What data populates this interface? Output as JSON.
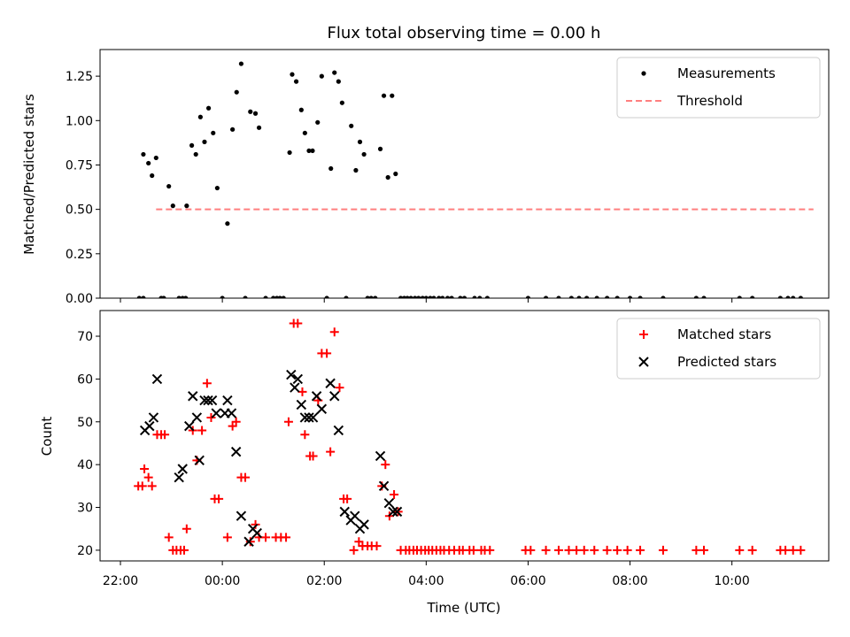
{
  "chart_data": [
    {
      "type": "scatter",
      "title": "Flux total observing time = 0.00 h",
      "xlabel": "",
      "ylabel": "Matched/Predicted stars",
      "xlim_hours": [
        21.6,
        35.9
      ],
      "ylim": [
        0,
        1.4
      ],
      "yticks": [
        "0.00",
        "0.25",
        "0.50",
        "0.75",
        "1.00",
        "1.25"
      ],
      "yticks_values": [
        0,
        0.25,
        0.5,
        0.75,
        1.0,
        1.25
      ],
      "legend_position": "top-right",
      "legend": [
        {
          "label": "Measurements",
          "marker": "dot",
          "color": "#000000"
        },
        {
          "label": "Threshold",
          "marker": "dashed-line",
          "color": "#ff7f7f"
        }
      ],
      "threshold": {
        "y": 0.5,
        "x_range_hours": [
          22.7,
          35.6
        ]
      },
      "series": [
        {
          "name": "Measurements",
          "points": [
            [
              22.37,
              0
            ],
            [
              22.45,
              0
            ],
            [
              22.45,
              0.81
            ],
            [
              22.55,
              0.76
            ],
            [
              22.62,
              0.69
            ],
            [
              22.7,
              0.79
            ],
            [
              22.8,
              0
            ],
            [
              22.85,
              0
            ],
            [
              22.95,
              0.63
            ],
            [
              23.03,
              0.52
            ],
            [
              23.15,
              0
            ],
            [
              23.22,
              0
            ],
            [
              23.28,
              0
            ],
            [
              23.3,
              0.52
            ],
            [
              23.4,
              0.86
            ],
            [
              23.48,
              0.81
            ],
            [
              23.57,
              1.02
            ],
            [
              23.65,
              0.88
            ],
            [
              23.73,
              1.07
            ],
            [
              23.82,
              0.93
            ],
            [
              23.9,
              0.62
            ],
            [
              24.0,
              0
            ],
            [
              24.1,
              0.42
            ],
            [
              24.2,
              0.95
            ],
            [
              24.28,
              1.16
            ],
            [
              24.37,
              1.32
            ],
            [
              24.45,
              0
            ],
            [
              24.55,
              1.05
            ],
            [
              24.65,
              1.04
            ],
            [
              24.72,
              0.96
            ],
            [
              24.85,
              0
            ],
            [
              25.0,
              0
            ],
            [
              25.07,
              0
            ],
            [
              25.13,
              0
            ],
            [
              25.2,
              0
            ],
            [
              25.32,
              0.82
            ],
            [
              25.37,
              1.26
            ],
            [
              25.45,
              1.22
            ],
            [
              25.55,
              1.06
            ],
            [
              25.62,
              0.93
            ],
            [
              25.7,
              0.83
            ],
            [
              25.77,
              0.83
            ],
            [
              25.87,
              0.99
            ],
            [
              25.95,
              1.25
            ],
            [
              26.05,
              0
            ],
            [
              26.13,
              0.73
            ],
            [
              26.2,
              1.27
            ],
            [
              26.28,
              1.22
            ],
            [
              26.35,
              1.1
            ],
            [
              26.43,
              0
            ],
            [
              26.53,
              0.97
            ],
            [
              26.62,
              0.72
            ],
            [
              26.7,
              0.88
            ],
            [
              26.78,
              0.81
            ],
            [
              26.85,
              0
            ],
            [
              26.92,
              0
            ],
            [
              27.0,
              0
            ],
            [
              27.1,
              0.84
            ],
            [
              27.17,
              1.14
            ],
            [
              27.25,
              0.68
            ],
            [
              27.33,
              1.14
            ],
            [
              27.4,
              0.7
            ],
            [
              27.5,
              0
            ],
            [
              27.57,
              0
            ],
            [
              27.63,
              0
            ],
            [
              27.7,
              0
            ],
            [
              27.78,
              0
            ],
            [
              27.85,
              0
            ],
            [
              27.93,
              0
            ],
            [
              28.0,
              0
            ],
            [
              28.08,
              0
            ],
            [
              28.15,
              0
            ],
            [
              28.25,
              0
            ],
            [
              28.32,
              0
            ],
            [
              28.42,
              0
            ],
            [
              28.5,
              0
            ],
            [
              28.67,
              0
            ],
            [
              28.75,
              0
            ],
            [
              28.95,
              0
            ],
            [
              29.05,
              0
            ],
            [
              29.2,
              0
            ],
            [
              30.0,
              0
            ],
            [
              30.35,
              0
            ],
            [
              30.6,
              0
            ],
            [
              30.85,
              0
            ],
            [
              31.0,
              0
            ],
            [
              31.15,
              0
            ],
            [
              31.35,
              0
            ],
            [
              31.55,
              0
            ],
            [
              31.75,
              0
            ],
            [
              32.0,
              0
            ],
            [
              32.2,
              0
            ],
            [
              32.65,
              0
            ],
            [
              33.3,
              0
            ],
            [
              33.45,
              0
            ],
            [
              34.15,
              0
            ],
            [
              34.4,
              0
            ],
            [
              34.95,
              0
            ],
            [
              35.1,
              0
            ],
            [
              35.2,
              0
            ],
            [
              35.35,
              0
            ]
          ]
        }
      ]
    },
    {
      "type": "scatter",
      "title": "",
      "xlabel": "Time (UTC)",
      "ylabel": "Count",
      "xlim_hours": [
        21.6,
        35.9
      ],
      "ylim": [
        17.5,
        76
      ],
      "yticks": [
        "20",
        "30",
        "40",
        "50",
        "60",
        "70"
      ],
      "yticks_values": [
        20,
        30,
        40,
        50,
        60,
        70
      ],
      "xticks": [
        "22:00",
        "00:00",
        "02:00",
        "04:00",
        "06:00",
        "08:00",
        "10:00"
      ],
      "xticks_hours": [
        22,
        24,
        26,
        28,
        30,
        32,
        34
      ],
      "legend_position": "top-right",
      "legend": [
        {
          "label": "Matched stars",
          "marker": "plus",
          "color": "#ff0000"
        },
        {
          "label": "Predicted stars",
          "marker": "x",
          "color": "#000000"
        }
      ],
      "series": [
        {
          "name": "Matched stars",
          "points": [
            [
              22.35,
              35
            ],
            [
              22.43,
              35
            ],
            [
              22.47,
              39
            ],
            [
              22.55,
              37
            ],
            [
              22.62,
              35
            ],
            [
              22.72,
              47
            ],
            [
              22.8,
              47
            ],
            [
              22.87,
              47
            ],
            [
              22.95,
              23
            ],
            [
              23.03,
              20
            ],
            [
              23.1,
              20
            ],
            [
              23.18,
              20
            ],
            [
              23.25,
              20
            ],
            [
              23.3,
              25
            ],
            [
              23.42,
              48
            ],
            [
              23.5,
              41
            ],
            [
              23.6,
              48
            ],
            [
              23.7,
              59
            ],
            [
              23.78,
              51
            ],
            [
              23.85,
              32
            ],
            [
              23.93,
              32
            ],
            [
              24.1,
              23
            ],
            [
              24.2,
              49
            ],
            [
              24.27,
              50
            ],
            [
              24.37,
              37
            ],
            [
              24.45,
              37
            ],
            [
              24.55,
              22
            ],
            [
              24.65,
              26
            ],
            [
              24.72,
              23
            ],
            [
              24.85,
              23
            ],
            [
              25.05,
              23
            ],
            [
              25.15,
              23
            ],
            [
              25.25,
              23
            ],
            [
              25.3,
              50
            ],
            [
              25.4,
              73
            ],
            [
              25.48,
              73
            ],
            [
              25.57,
              57
            ],
            [
              25.62,
              47
            ],
            [
              25.72,
              42
            ],
            [
              25.78,
              42
            ],
            [
              25.88,
              55
            ],
            [
              25.95,
              66
            ],
            [
              26.05,
              66
            ],
            [
              26.12,
              43
            ],
            [
              26.2,
              71
            ],
            [
              26.3,
              58
            ],
            [
              26.38,
              32
            ],
            [
              26.45,
              32
            ],
            [
              26.58,
              20
            ],
            [
              26.68,
              22
            ],
            [
              26.75,
              21
            ],
            [
              26.85,
              21
            ],
            [
              26.93,
              21
            ],
            [
              27.03,
              21
            ],
            [
              27.13,
              35
            ],
            [
              27.2,
              40
            ],
            [
              27.28,
              28
            ],
            [
              27.37,
              33
            ],
            [
              27.45,
              29
            ],
            [
              27.5,
              20
            ],
            [
              27.6,
              20
            ],
            [
              27.67,
              20
            ],
            [
              27.75,
              20
            ],
            [
              27.82,
              20
            ],
            [
              27.9,
              20
            ],
            [
              27.98,
              20
            ],
            [
              28.05,
              20
            ],
            [
              28.12,
              20
            ],
            [
              28.2,
              20
            ],
            [
              28.28,
              20
            ],
            [
              28.35,
              20
            ],
            [
              28.45,
              20
            ],
            [
              28.55,
              20
            ],
            [
              28.65,
              20
            ],
            [
              28.72,
              20
            ],
            [
              28.85,
              20
            ],
            [
              28.93,
              20
            ],
            [
              29.08,
              20
            ],
            [
              29.15,
              20
            ],
            [
              29.25,
              20
            ],
            [
              29.95,
              20
            ],
            [
              30.05,
              20
            ],
            [
              30.35,
              20
            ],
            [
              30.6,
              20
            ],
            [
              30.8,
              20
            ],
            [
              30.95,
              20
            ],
            [
              31.1,
              20
            ],
            [
              31.3,
              20
            ],
            [
              31.55,
              20
            ],
            [
              31.75,
              20
            ],
            [
              31.95,
              20
            ],
            [
              32.2,
              20
            ],
            [
              32.65,
              20
            ],
            [
              33.3,
              20
            ],
            [
              33.45,
              20
            ],
            [
              34.15,
              20
            ],
            [
              34.4,
              20
            ],
            [
              34.95,
              20
            ],
            [
              35.05,
              20
            ],
            [
              35.2,
              20
            ],
            [
              35.35,
              20
            ]
          ]
        },
        {
          "name": "Predicted stars",
          "points": [
            [
              22.48,
              48
            ],
            [
              22.57,
              49
            ],
            [
              22.65,
              51
            ],
            [
              22.72,
              60
            ],
            [
              23.15,
              37
            ],
            [
              23.22,
              39
            ],
            [
              23.35,
              49
            ],
            [
              23.42,
              56
            ],
            [
              23.5,
              51
            ],
            [
              23.55,
              41
            ],
            [
              23.65,
              55
            ],
            [
              23.72,
              55
            ],
            [
              23.8,
              55
            ],
            [
              23.88,
              52
            ],
            [
              24.05,
              52
            ],
            [
              24.1,
              55
            ],
            [
              24.18,
              52
            ],
            [
              24.27,
              43
            ],
            [
              24.37,
              28
            ],
            [
              24.52,
              22
            ],
            [
              24.6,
              25
            ],
            [
              24.68,
              24
            ],
            [
              25.35,
              61
            ],
            [
              25.42,
              58
            ],
            [
              25.48,
              60
            ],
            [
              25.55,
              54
            ],
            [
              25.62,
              51
            ],
            [
              25.7,
              51
            ],
            [
              25.78,
              51
            ],
            [
              25.85,
              56
            ],
            [
              25.95,
              53
            ],
            [
              26.12,
              59
            ],
            [
              26.2,
              56
            ],
            [
              26.28,
              48
            ],
            [
              26.4,
              29
            ],
            [
              26.52,
              27
            ],
            [
              26.6,
              28
            ],
            [
              26.7,
              25
            ],
            [
              26.78,
              26
            ],
            [
              27.1,
              42
            ],
            [
              27.17,
              35
            ],
            [
              27.27,
              31
            ],
            [
              27.35,
              29
            ],
            [
              27.43,
              29
            ]
          ]
        }
      ]
    }
  ]
}
